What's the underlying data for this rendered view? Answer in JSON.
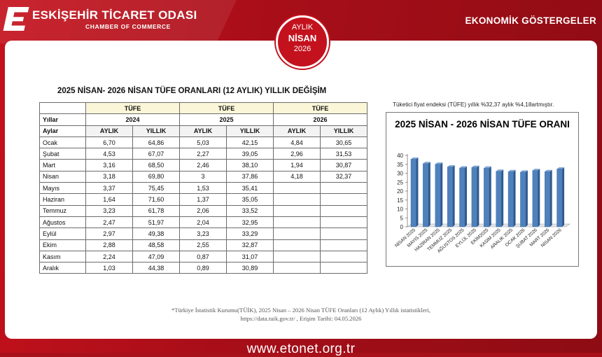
{
  "header": {
    "org_title": "ESKİŞEHİR TİCARET ODASI",
    "org_subtitle": "CHAMBER OF COMMERCE",
    "section": "EKONOMİK GÖSTERGELER",
    "badge": {
      "line1": "AYLIK",
      "line2": "NİSAN",
      "line3": "2026"
    }
  },
  "table": {
    "title": "2025 NİSAN- 2026 NİSAN TÜFE ORANLARI (12 AYLIK) YILLIK DEĞİŞİM",
    "group_label": "TÜFE",
    "row_label_years": "Yıllar",
    "row_label_type": "Aylar",
    "years": [
      "2024",
      "2025",
      "2026"
    ],
    "sub_headers": [
      "AYLIK",
      "YILLIK"
    ],
    "rows": [
      [
        "Ocak",
        "6,70",
        "64,86",
        "5,03",
        "42,15",
        "4,84",
        "30,65"
      ],
      [
        "Şubat",
        "4,53",
        "67,07",
        "2,27",
        "39,05",
        "2,96",
        "31,53"
      ],
      [
        "Mart",
        "3,16",
        "68,50",
        "2,46",
        "38,10",
        "1,94",
        "30,87"
      ],
      [
        "Nisan",
        "3,18",
        "69,80",
        "3",
        "37,86",
        "4,18",
        "32,37"
      ],
      [
        "Mayıs",
        "3,37",
        "75,45",
        "1,53",
        "35,41",
        "",
        ""
      ],
      [
        "Haziran",
        "1,64",
        "71,60",
        "1,37",
        "35,05",
        "",
        ""
      ],
      [
        "Temmuz",
        "3,23",
        "61,78",
        "2,06",
        "33,52",
        "",
        ""
      ],
      [
        "Ağustos",
        "2,47",
        "51,97",
        "2,04",
        "32,95",
        "",
        ""
      ],
      [
        "Eylül",
        "2,97",
        "49,38",
        "3,23",
        "33,29",
        "",
        ""
      ],
      [
        "Ekim",
        "2,88",
        "48,58",
        "2,55",
        "32,87",
        "",
        ""
      ],
      [
        "Kasım",
        "2,24",
        "47,09",
        "0,87",
        "31,07",
        "",
        ""
      ],
      [
        "Aralık",
        "1,03",
        "44,38",
        "0,89",
        "30,89",
        "",
        ""
      ]
    ]
  },
  "note": "Tüketici fiyat endeksi (TÜFE) yıllık %32,37  aylık  %4,18artmıştır.",
  "footnote": {
    "line1": "*Türkiye İstatistik Kurumu(TÜİK), 2025 Nisan  – 2026 Nisan TÜFE Oranları (12 Aylık) Yıllık istatistikleri,",
    "line2": "https://data.tuik.gov.tr/ , Erişim Tarihi: 04.05.2026"
  },
  "footer_url": "www.etonet.org.tr",
  "colors": {
    "brand_red": "#c4111c",
    "bar_fill": "#4f81bd",
    "header_fill": "#fbf6d8"
  },
  "chart_data": {
    "type": "bar",
    "title": "2025 NİSAN - 2026 NİSAN TÜFE ORANI",
    "categories": [
      "NİSAN 2025",
      "MAYIS 2025",
      "HAZİRAN 2025",
      "TEMMUZ 2025",
      "AĞUSTOS 2025",
      "EYLÜL 2025",
      "EKİM2025",
      "KASIM 2025",
      "ARALIK 2025",
      "OCAK 2026",
      "ŞUBAT 2026",
      "MART 2026",
      "NİSAN 2026"
    ],
    "values": [
      37.86,
      35.41,
      35.05,
      33.52,
      32.95,
      33.29,
      32.87,
      31.07,
      30.89,
      30.65,
      31.53,
      30.87,
      32.37
    ],
    "ylim": [
      0,
      40
    ],
    "yticks": [
      0,
      5,
      10,
      15,
      20,
      25,
      30,
      35,
      40
    ],
    "grid": false,
    "legend": "none"
  }
}
